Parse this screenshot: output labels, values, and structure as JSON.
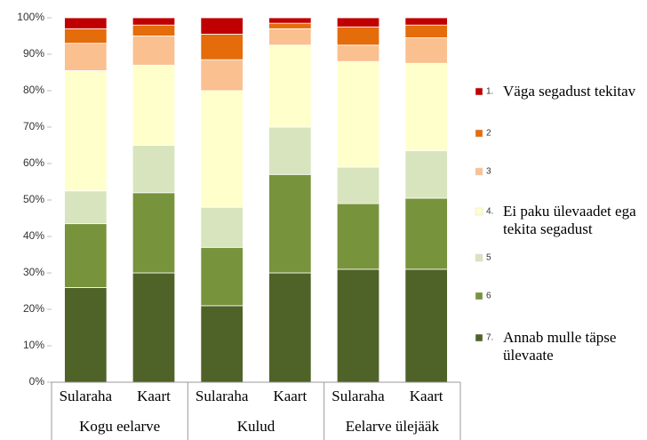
{
  "chart_data": {
    "type": "stacked_bar_percent",
    "categories": [
      "Sularaha",
      "Kaart",
      "Sularaha",
      "Kaart",
      "Sularaha",
      "Kaart"
    ],
    "groups": [
      "Kogu eelarve",
      "Kulud",
      "Eelarve ülejääk"
    ],
    "ylim": [
      0,
      100
    ],
    "yticks": [
      {
        "value": 0,
        "label": "0%"
      },
      {
        "value": 10,
        "label": "10%"
      },
      {
        "value": 20,
        "label": "20%"
      },
      {
        "value": 30,
        "label": "30%"
      },
      {
        "value": 40,
        "label": "40%"
      },
      {
        "value": 50,
        "label": "50%"
      },
      {
        "value": 60,
        "label": "60%"
      },
      {
        "value": 70,
        "label": "70%"
      },
      {
        "value": 80,
        "label": "80%"
      },
      {
        "value": 90,
        "label": "90%"
      },
      {
        "value": 100,
        "label": "100%"
      }
    ],
    "series": [
      {
        "name": "7.",
        "description": "Annab mulle täpse ülevaate",
        "color": "#4f6228",
        "values": [
          26,
          30,
          21,
          30,
          31,
          31
        ]
      },
      {
        "name": "6",
        "color": "#77933c",
        "values": [
          17.5,
          22,
          16,
          27,
          18,
          19.5
        ]
      },
      {
        "name": "5",
        "color": "#d7e4bd",
        "values": [
          9,
          13,
          11,
          13,
          10,
          13
        ]
      },
      {
        "name": "4.",
        "description": "Ei paku ülevaadet ega tekita segadust",
        "color": "#ffffcc",
        "values": [
          33,
          22,
          32,
          22.5,
          29,
          24
        ]
      },
      {
        "name": "3",
        "color": "#fac090",
        "values": [
          7.5,
          8,
          8.5,
          4.5,
          4.5,
          7
        ]
      },
      {
        "name": "2",
        "color": "#e46c0a",
        "values": [
          4,
          3,
          7,
          1.5,
          5,
          3.5
        ]
      },
      {
        "name": "1.",
        "description": "Väga segadust tekitav",
        "color": "#c00000",
        "values": [
          3,
          2,
          4.5,
          1.5,
          2.5,
          2
        ]
      }
    ]
  }
}
